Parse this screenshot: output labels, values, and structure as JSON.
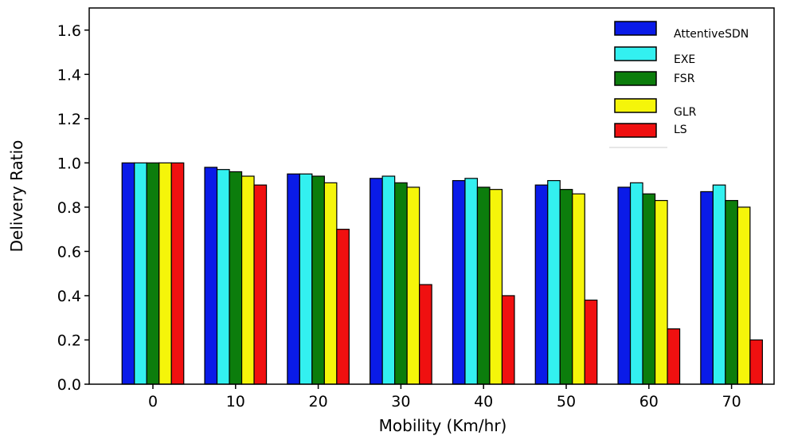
{
  "chart_data": {
    "type": "bar",
    "title": "",
    "xlabel": "Mobility (Km/hr)",
    "ylabel": "Delivery Ratio",
    "categories": [
      "0",
      "10",
      "20",
      "30",
      "40",
      "50",
      "60",
      "70"
    ],
    "ylim": [
      0,
      1.7
    ],
    "yticks": [
      "0.0",
      "0.2",
      "0.4",
      "0.6",
      "0.8",
      "1.0",
      "1.2",
      "1.4",
      "1.6"
    ],
    "grid": false,
    "legend_position": "top-right",
    "series": [
      {
        "name": "AttentiveSDN",
        "color": "#0a1be8",
        "values": [
          1.0,
          0.98,
          0.95,
          0.93,
          0.92,
          0.9,
          0.89,
          0.87
        ]
      },
      {
        "name": "EXE",
        "color": "#33f0f0",
        "values": [
          1.0,
          0.97,
          0.95,
          0.94,
          0.93,
          0.92,
          0.91,
          0.9
        ]
      },
      {
        "name": "FSR",
        "color": "#0c7d0c",
        "values": [
          1.0,
          0.96,
          0.94,
          0.91,
          0.89,
          0.88,
          0.86,
          0.83
        ]
      },
      {
        "name": "GLR",
        "color": "#f5f50a",
        "values": [
          1.0,
          0.94,
          0.91,
          0.89,
          0.88,
          0.86,
          0.83,
          0.8
        ]
      },
      {
        "name": "LS",
        "color": "#f01010",
        "values": [
          1.0,
          0.9,
          0.7,
          0.45,
          0.4,
          0.38,
          0.25,
          0.2
        ]
      }
    ]
  }
}
